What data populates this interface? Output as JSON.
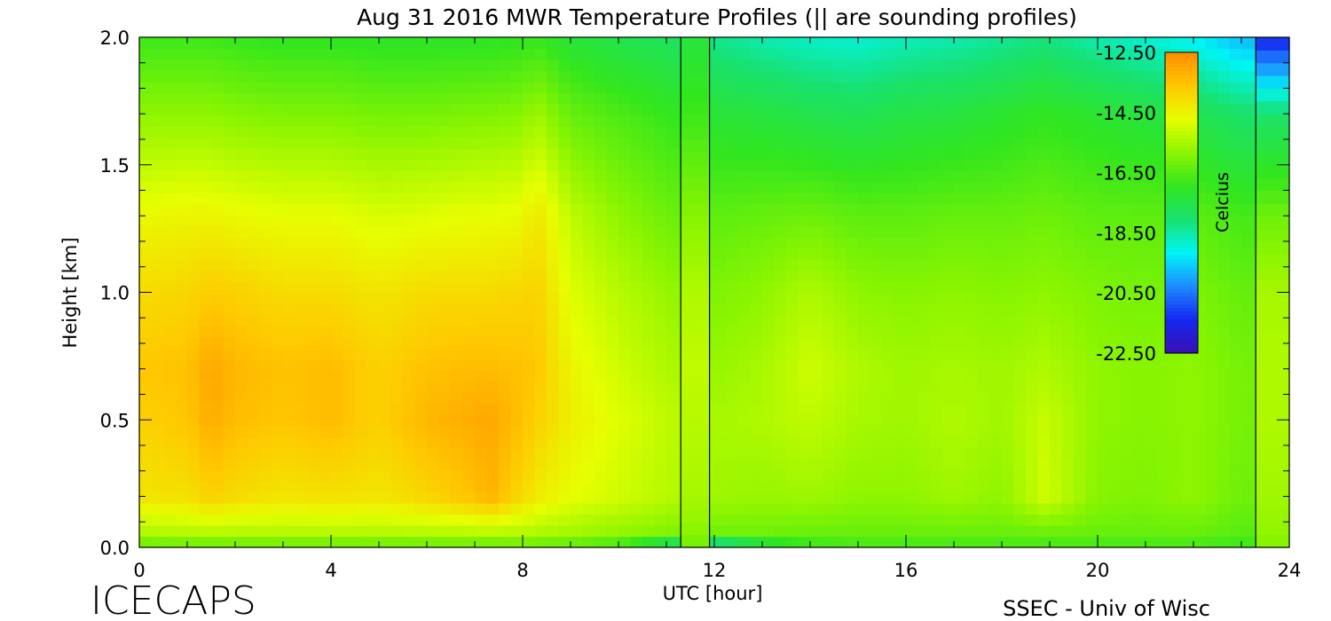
{
  "chart_data": {
    "type": "heatmap",
    "title": "Aug 31 2016 MWR Temperature Profiles (|| are sounding profiles)",
    "xlabel": "UTC [hour]",
    "ylabel": "Height [km]",
    "xlim": [
      0,
      24
    ],
    "ylim": [
      0,
      2
    ],
    "x_ticks": [
      "0",
      "4",
      "8",
      "12",
      "16",
      "20",
      "24"
    ],
    "y_ticks": [
      "0.0",
      "0.5",
      "1.0",
      "1.5",
      "2.0"
    ],
    "colorbar": {
      "label": "Celcius",
      "range": [
        -22.5,
        -12.5
      ],
      "ticks": [
        "-12.50",
        "-14.50",
        "-16.50",
        "-18.50",
        "-20.50",
        "-22.50"
      ],
      "colors": [
        "#3a10b4",
        "#1428f0",
        "#1e8cff",
        "#00f5f5",
        "#19e16e",
        "#32e61e",
        "#8cf500",
        "#e6ff00",
        "#ffc800",
        "#ff8c00"
      ]
    },
    "sounding_profiles_utc": [
      11.3,
      11.9,
      23.3
    ],
    "times_utc": [
      0,
      1,
      1.5,
      2,
      3,
      4,
      5,
      6,
      7,
      7.3,
      8,
      8.3,
      9,
      10,
      11,
      12,
      13,
      14,
      15,
      16,
      17,
      18,
      18.9,
      20,
      21,
      22,
      23,
      24
    ],
    "heights_km": [
      0.0,
      0.05,
      0.2,
      0.5,
      0.7,
      1.0,
      1.3,
      1.7,
      2.0
    ],
    "temperature_c": [
      [
        -16.5,
        -15.5,
        -14.2,
        -13.8,
        -13.6,
        -14.0,
        -14.6,
        -15.8,
        -16.8
      ],
      [
        -16.5,
        -15.4,
        -14.1,
        -13.6,
        -13.5,
        -13.9,
        -14.5,
        -15.8,
        -16.8
      ],
      [
        -16.5,
        -15.4,
        -13.8,
        -13.1,
        -13.0,
        -13.7,
        -14.5,
        -15.8,
        -16.8
      ],
      [
        -16.5,
        -15.4,
        -14.0,
        -13.4,
        -13.3,
        -13.8,
        -14.6,
        -15.9,
        -16.9
      ],
      [
        -16.5,
        -15.4,
        -14.2,
        -13.6,
        -13.5,
        -14.0,
        -14.7,
        -16.0,
        -17.0
      ],
      [
        -16.5,
        -15.4,
        -14.1,
        -13.4,
        -13.4,
        -14.0,
        -14.7,
        -16.0,
        -17.0
      ],
      [
        -16.5,
        -15.4,
        -14.2,
        -13.8,
        -13.8,
        -14.2,
        -14.9,
        -16.1,
        -17.1
      ],
      [
        -16.5,
        -15.4,
        -13.9,
        -13.3,
        -13.5,
        -14.0,
        -14.8,
        -16.1,
        -17.1
      ],
      [
        -16.5,
        -15.4,
        -13.5,
        -13.1,
        -13.4,
        -14.0,
        -14.7,
        -16.0,
        -17.1
      ],
      [
        -16.5,
        -15.4,
        -13.2,
        -13.0,
        -13.4,
        -14.0,
        -14.7,
        -16.0,
        -17.1
      ],
      [
        -16.5,
        -15.4,
        -14.0,
        -13.5,
        -13.5,
        -13.9,
        -14.6,
        -15.9,
        -17.0
      ],
      [
        -16.5,
        -15.5,
        -14.3,
        -13.8,
        -13.6,
        -13.8,
        -14.2,
        -15.6,
        -16.9
      ],
      [
        -16.6,
        -15.6,
        -14.7,
        -14.4,
        -14.5,
        -14.8,
        -15.2,
        -16.3,
        -17.3
      ],
      [
        -17.0,
        -15.8,
        -15.0,
        -14.8,
        -15.0,
        -15.3,
        -15.8,
        -16.6,
        -17.6
      ],
      [
        -18.5,
        -16.0,
        -15.3,
        -15.2,
        -15.4,
        -15.7,
        -16.2,
        -16.9,
        -17.8
      ],
      [
        -19.5,
        -16.2,
        -15.6,
        -15.5,
        -15.7,
        -16.0,
        -16.4,
        -17.3,
        -18.3
      ],
      [
        -18.0,
        -16.2,
        -15.7,
        -15.4,
        -15.5,
        -15.8,
        -16.3,
        -17.4,
        -18.6
      ],
      [
        -17.0,
        -16.3,
        -15.6,
        -15.2,
        -15.0,
        -15.4,
        -16.2,
        -17.6,
        -18.8
      ],
      [
        -16.8,
        -16.3,
        -15.8,
        -15.5,
        -15.4,
        -15.8,
        -16.4,
        -17.7,
        -18.9
      ],
      [
        -16.8,
        -16.3,
        -15.8,
        -15.6,
        -15.6,
        -15.9,
        -16.4,
        -17.5,
        -18.7
      ],
      [
        -16.8,
        -16.3,
        -15.6,
        -15.4,
        -15.5,
        -15.8,
        -16.3,
        -17.4,
        -18.6
      ],
      [
        -16.8,
        -16.3,
        -15.8,
        -15.6,
        -15.6,
        -15.9,
        -16.3,
        -17.2,
        -18.4
      ],
      [
        -16.8,
        -16.3,
        -15.0,
        -15.1,
        -15.4,
        -15.8,
        -16.2,
        -17.0,
        -18.2
      ],
      [
        -16.8,
        -16.3,
        -15.9,
        -15.8,
        -15.8,
        -16.0,
        -16.4,
        -17.2,
        -18.6
      ],
      [
        -16.8,
        -16.3,
        -16.0,
        -15.9,
        -15.9,
        -16.1,
        -16.4,
        -17.4,
        -18.9
      ],
      [
        -16.8,
        -16.3,
        -15.8,
        -15.8,
        -15.8,
        -16.0,
        -16.4,
        -17.6,
        -19.2
      ],
      [
        -16.9,
        -16.5,
        -16.2,
        -16.1,
        -16.1,
        -16.3,
        -16.7,
        -18.0,
        -19.8
      ],
      [
        -16.9,
        -16.5,
        -16.2,
        -16.1,
        -16.1,
        -16.3,
        -16.7,
        -18.0,
        -19.8
      ]
    ],
    "sounding_temperature_c": [
      -16.2,
      -15.9,
      -15.5,
      -15.3,
      -15.2,
      -15.4,
      -15.9,
      -16.8,
      -17.4
    ],
    "column_23_3_temperature_c": [
      -16.0,
      -15.8,
      -15.6,
      -15.4,
      -15.4,
      -15.5,
      -16.2,
      -18.0,
      -21.5
    ]
  },
  "footer": {
    "left": "ICECAPS",
    "right": "SSEC - Univ of Wisc"
  }
}
